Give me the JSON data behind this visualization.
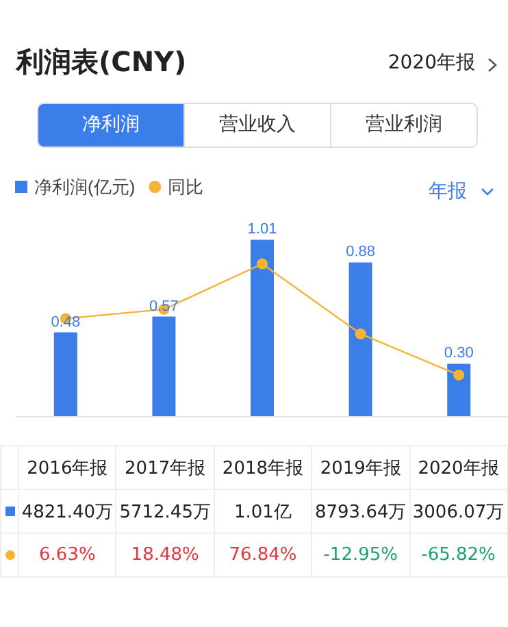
{
  "chart_data": {
    "type": "bar",
    "title": "利润表(CNY)",
    "annotations": [
      "2020年报",
      "净利润",
      "营业收入",
      "营业利润",
      "年报",
      "4821.40万",
      "5712.45万",
      "1.01亿",
      "8793.64万",
      "3006.07万"
    ],
    "categories": [
      "2016年报",
      "2017年报",
      "2018年报",
      "2019年报",
      "2020年报"
    ],
    "series": [
      {
        "name": "净利润(亿元)",
        "color": "#3b7de9",
        "values": [
          0.48,
          0.57,
          1.01,
          0.88,
          0.3
        ],
        "value_labels": [
          "0.48",
          "0.57",
          "1.01",
          "0.88",
          "0.30"
        ]
      },
      {
        "name": "同比",
        "type": "line",
        "axis": "y2",
        "color": "#f5b335",
        "values": [
          6.63,
          18.48,
          76.84,
          -12.95,
          -65.82
        ],
        "value_labels": [
          "6.63%",
          "18.48%",
          "76.84%",
          "-12.95%",
          "-65.82%"
        ]
      }
    ],
    "tick_labels": false,
    "legend": "top left",
    "marker": "circle",
    "line_style": "solid"
  }
}
